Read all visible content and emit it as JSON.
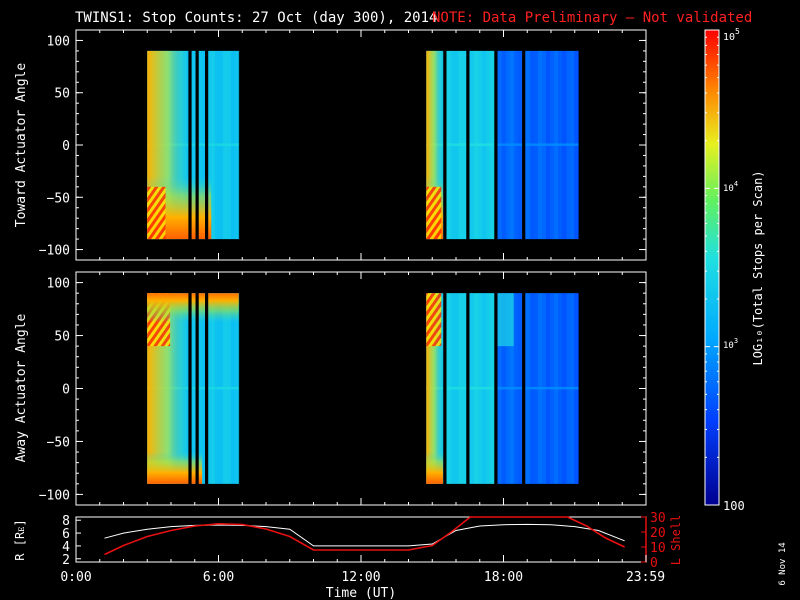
{
  "header": {
    "title": "TWINS1: Stop Counts: 27 Oct (day 300), 2014",
    "note": "NOTE: Data Preliminary – Not validated"
  },
  "side_stamp": "6 Nov 14",
  "colors": {
    "background": "#000000",
    "axes": "#ffffff",
    "note": "#ff2020",
    "l_shell": "#e81010",
    "radius": "#ffffff"
  },
  "chart_data": [
    {
      "type": "heatmap",
      "panel": "toward",
      "ylabel": "Toward Actuator Angle",
      "ylim": [
        -110,
        110
      ],
      "yticks": [
        "100",
        "50",
        "0",
        "−50",
        "−100"
      ],
      "xlim_hours": [
        0,
        24
      ],
      "data_angle_range": [
        -90,
        90
      ],
      "data_segments_hours": [
        [
          3.0,
          6.85
        ],
        [
          14.75,
          15.45
        ],
        [
          15.6,
          17.6
        ],
        [
          17.75,
          21.15
        ]
      ],
      "data_gaps_hours": [
        4.8,
        5.1,
        5.5,
        7.0,
        16.5,
        18.85
      ],
      "color": {
        "label": "LOG₁₀(Total Stops per Scan)",
        "scale": "log",
        "range": [
          100,
          100000
        ]
      }
    },
    {
      "type": "heatmap",
      "panel": "away",
      "ylabel": "Away Actuator Angle",
      "ylim": [
        -110,
        110
      ],
      "yticks": [
        "100",
        "50",
        "0",
        "−50",
        "−100"
      ],
      "xlim_hours": [
        0,
        24
      ],
      "data_angle_range": [
        -90,
        90
      ],
      "data_segments_hours": [
        [
          3.0,
          6.85
        ],
        [
          14.75,
          15.45
        ],
        [
          15.6,
          17.6
        ],
        [
          17.75,
          21.15
        ]
      ],
      "data_gaps_hours": [
        4.8,
        5.1,
        5.5,
        7.0,
        16.5,
        18.85
      ],
      "color": {
        "label": "LOG₁₀(Total Stops per Scan)",
        "scale": "log",
        "range": [
          100,
          100000
        ]
      }
    },
    {
      "type": "line",
      "panel": "orbit",
      "xlabel": "Time (UT)",
      "xticks": [
        "0:00",
        "6:00",
        "12:00",
        "18:00",
        "23:59"
      ],
      "xlim_hours": [
        0,
        24
      ],
      "left_axis": {
        "label": "R [Rᴇ]",
        "ticks": [
          "8",
          "6",
          "4",
          "2"
        ],
        "ylim": [
          1.5,
          8.5
        ]
      },
      "right_axis": {
        "label": "L Shell",
        "ticks": [
          "30",
          "20",
          "10",
          "0"
        ],
        "ylim": [
          0,
          30
        ]
      },
      "series": [
        {
          "name": "R [Rᴇ]",
          "axis": "left",
          "x": [
            1.2,
            2,
            3,
            4,
            5,
            6,
            7,
            8,
            9,
            10,
            11,
            12,
            13,
            14,
            15,
            16,
            17,
            18,
            19,
            20,
            21,
            22,
            23.1
          ],
          "y": [
            5.2,
            6.0,
            6.6,
            7.0,
            7.2,
            7.25,
            7.2,
            7.0,
            6.6,
            4.0,
            4.0,
            4.0,
            4.0,
            4.0,
            4.3,
            6.4,
            7.1,
            7.3,
            7.35,
            7.3,
            7.0,
            6.4,
            4.8
          ]
        },
        {
          "name": "L Shell",
          "axis": "right",
          "x": [
            1.2,
            2,
            3,
            4,
            5,
            6,
            7,
            8,
            9,
            10,
            11,
            12,
            13,
            14,
            15,
            15.8,
            16.6,
            20.7,
            21.5,
            22.3,
            23.1
          ],
          "y": [
            5,
            11,
            17,
            21,
            24,
            25.5,
            25,
            22,
            17,
            8,
            8,
            8,
            8,
            8,
            11,
            20,
            30,
            30,
            24,
            16,
            10
          ]
        }
      ]
    }
  ]
}
